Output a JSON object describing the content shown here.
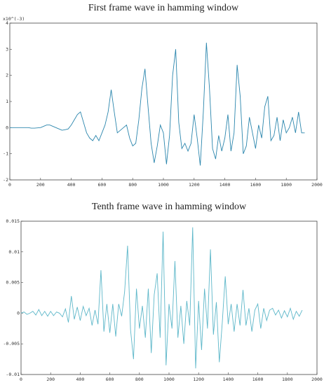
{
  "chart_data": [
    {
      "type": "line",
      "title": "First frame wave in hamming window",
      "y_multiplier": "x10^(-3)",
      "color": "#2b86ad",
      "x": [
        0,
        20,
        40,
        60,
        80,
        100,
        120,
        140,
        160,
        180,
        200,
        220,
        240,
        260,
        280,
        300,
        320,
        340,
        360,
        380,
        400,
        420,
        440,
        460,
        480,
        500,
        520,
        540,
        560,
        580,
        600,
        620,
        640,
        660,
        680,
        700,
        720,
        740,
        760,
        780,
        800,
        820,
        840,
        860,
        880,
        900,
        920,
        940,
        960,
        980,
        1000,
        1020,
        1040,
        1060,
        1080,
        1100,
        1120,
        1140,
        1160,
        1180,
        1200,
        1220,
        1240,
        1260,
        1280,
        1300,
        1320,
        1340,
        1360,
        1380,
        1400,
        1420,
        1440,
        1460,
        1480,
        1500,
        1520,
        1540,
        1560,
        1580,
        1600,
        1620,
        1640,
        1660,
        1680,
        1700,
        1720,
        1740,
        1760,
        1780,
        1800,
        1820,
        1840,
        1860,
        1880,
        1900,
        1920
      ],
      "values": [
        0,
        0,
        0,
        0,
        0,
        0,
        0,
        -0.02,
        -0.02,
        -0.01,
        0,
        0.05,
        0.1,
        0.1,
        0.05,
        0,
        -0.05,
        -0.1,
        -0.08,
        -0.05,
        0.1,
        0.3,
        0.5,
        0.6,
        0.2,
        -0.2,
        -0.4,
        -0.5,
        -0.3,
        -0.5,
        -0.2,
        0.1,
        0.6,
        1.45,
        0.6,
        -0.2,
        -0.1,
        0,
        0.1,
        -0.4,
        -0.7,
        -0.6,
        0.3,
        1.5,
        2.25,
        0.8,
        -0.6,
        -1.35,
        -0.7,
        0.1,
        -0.2,
        -1.4,
        -0.3,
        2.0,
        3.0,
        0.2,
        -0.8,
        -0.6,
        -0.9,
        -0.6,
        0.5,
        -0.4,
        -1.45,
        0.6,
        3.25,
        1.5,
        -0.8,
        -1.2,
        -0.3,
        -0.9,
        -0.4,
        0.5,
        -0.9,
        -0.2,
        2.4,
        1.2,
        -1.0,
        -0.7,
        0.4,
        -0.2,
        -0.8,
        0.1,
        -0.4,
        0.8,
        1.2,
        -0.5,
        -0.3,
        0.4,
        -0.5,
        0.3,
        -0.2,
        0,
        0.4,
        -0.2,
        0.6,
        -0.2,
        -0.2
      ],
      "xlim": [
        0,
        2000
      ],
      "xticks": [
        0,
        200,
        400,
        600,
        800,
        1000,
        1200,
        1400,
        1600,
        1800,
        2000
      ],
      "ylim": [
        -2,
        4
      ],
      "yticks": [
        -2,
        -1,
        0,
        1,
        2,
        3,
        4
      ]
    },
    {
      "type": "line",
      "title": "Tenth frame wave in hamming window",
      "color": "#5db7c9",
      "x": [
        0,
        20,
        40,
        60,
        80,
        100,
        120,
        140,
        160,
        180,
        200,
        220,
        240,
        260,
        280,
        300,
        320,
        340,
        360,
        380,
        400,
        420,
        440,
        460,
        480,
        500,
        520,
        540,
        560,
        580,
        600,
        620,
        640,
        660,
        680,
        700,
        720,
        740,
        760,
        780,
        800,
        820,
        840,
        860,
        880,
        900,
        920,
        940,
        960,
        980,
        1000,
        1020,
        1040,
        1060,
        1080,
        1100,
        1120,
        1140,
        1160,
        1180,
        1200,
        1220,
        1240,
        1260,
        1280,
        1300,
        1320,
        1340,
        1360,
        1380,
        1400,
        1420,
        1440,
        1460,
        1480,
        1500,
        1520,
        1540,
        1560,
        1580,
        1600,
        1620,
        1640,
        1660,
        1680,
        1700,
        1720,
        1740,
        1760,
        1780,
        1800,
        1820,
        1840,
        1860,
        1880,
        1900
      ],
      "values": [
        0,
        0.0002,
        -0.0002,
        0,
        0.0003,
        -0.0003,
        0.0006,
        -0.0004,
        0.0003,
        -0.0005,
        0.0003,
        -0.0004,
        0.0002,
        0,
        -0.0006,
        0.0007,
        -0.0015,
        0.0028,
        -0.001,
        0.001,
        -0.0012,
        0.0011,
        -0.0004,
        0.0008,
        -0.002,
        0.0005,
        -0.0018,
        0.007,
        -0.003,
        0.0015,
        -0.0032,
        0.0015,
        -0.0038,
        0.0015,
        -0.0005,
        0.0035,
        0.011,
        -0.0027,
        -0.0075,
        0.004,
        -0.0025,
        0.0012,
        -0.004,
        0.004,
        -0.0065,
        0.003,
        0.0065,
        -0.004,
        0.0133,
        -0.0085,
        0.0015,
        -0.0025,
        0.0085,
        -0.004,
        0.0012,
        -0.005,
        0.002,
        -0.002,
        0.014,
        -0.009,
        0.002,
        -0.006,
        0.004,
        -0.0025,
        0.0104,
        -0.0035,
        0.0018,
        -0.008,
        -0.0015,
        0.006,
        -0.0018,
        0.0015,
        -0.003,
        0.0015,
        -0.002,
        0.0038,
        -0.002,
        0.0008,
        -0.003,
        0.0005,
        0.0015,
        -0.0025,
        0.0008,
        -0.0012,
        0.0005,
        0.0008,
        -0.0003,
        0.0005,
        -0.0008,
        0.0004,
        -0.0006,
        0.0008,
        -0.001,
        0.0003,
        -0.0005,
        0.0005
      ],
      "xlim": [
        0,
        2000
      ],
      "xticks": [
        0,
        200,
        400,
        600,
        800,
        1000,
        1200,
        1400,
        1600,
        1800,
        2000
      ],
      "ylim": [
        -0.01,
        0.015
      ],
      "yticks": [
        -0.01,
        -0.005,
        0,
        0.005,
        0.01,
        0.015
      ]
    }
  ]
}
